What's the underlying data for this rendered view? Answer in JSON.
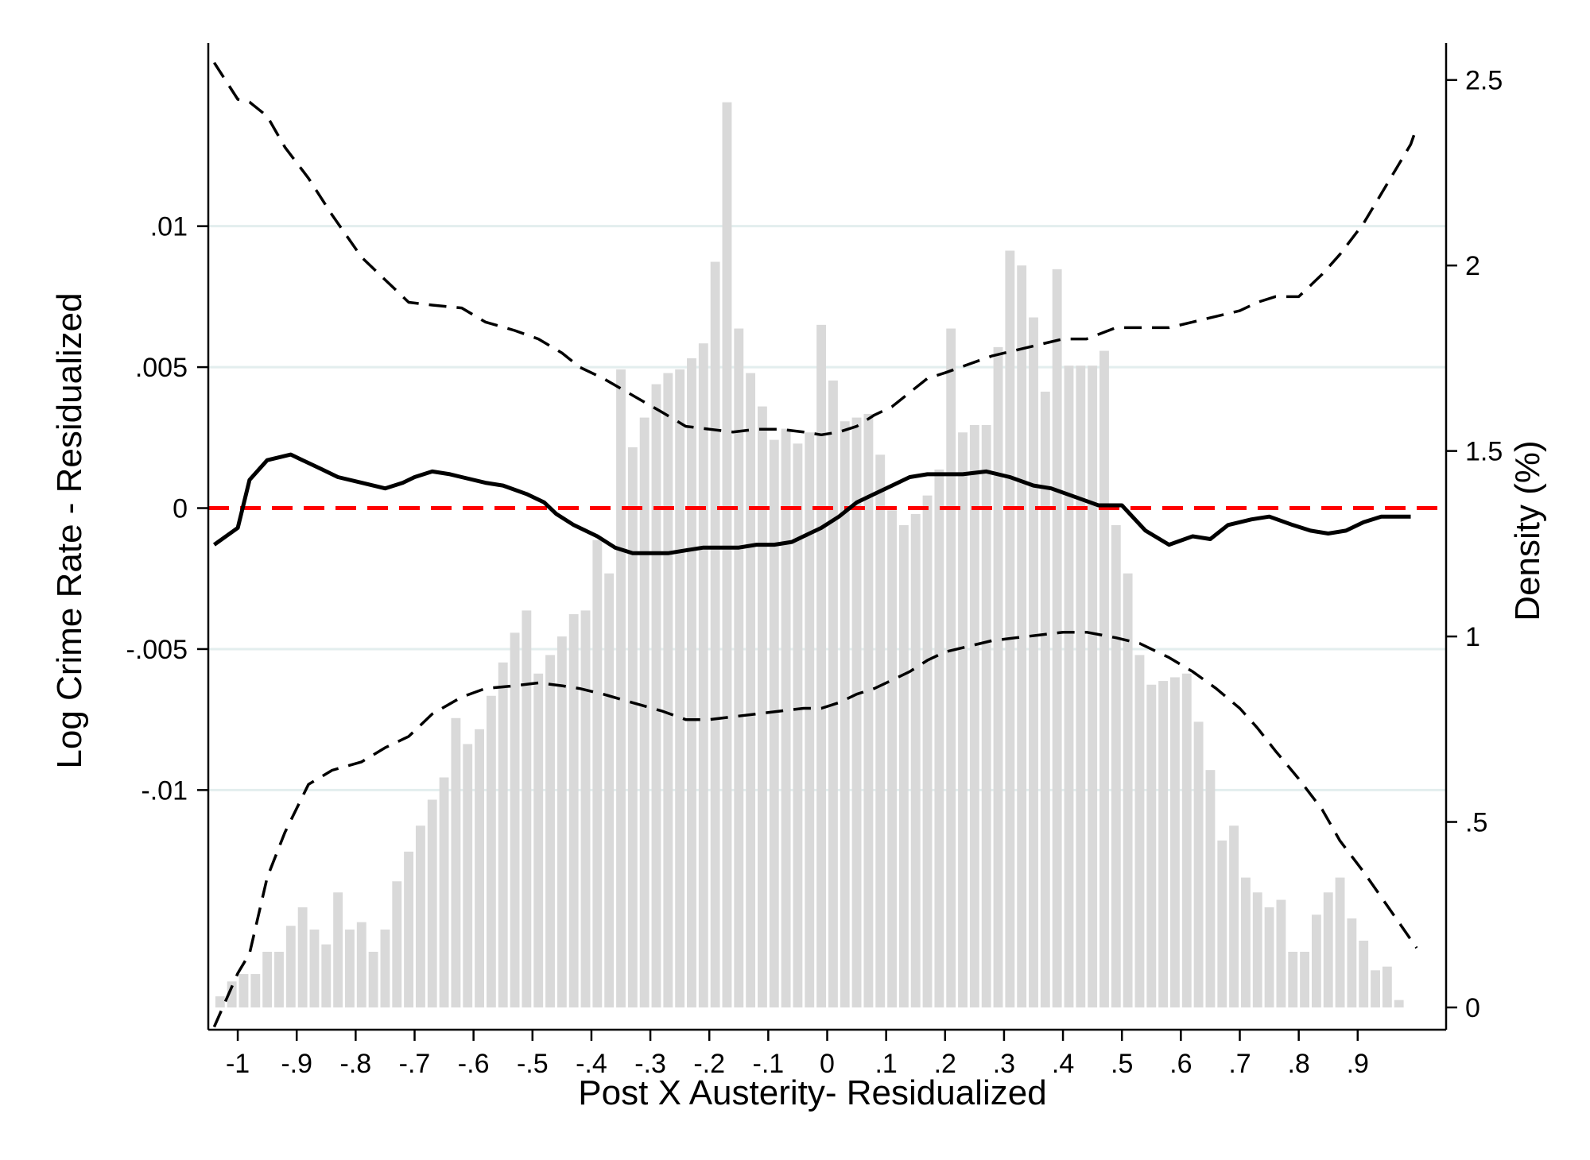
{
  "chart_data": {
    "type": "histogram_with_line",
    "title": "",
    "xlabel": "Post X Austerity- Residualized",
    "ylabel_left": "Log Crime Rate - Residualized",
    "ylabel_right": "Density (%)",
    "xlim": [
      -1.05,
      1.05
    ],
    "ylim_left": [
      -0.0185,
      0.0165
    ],
    "ylim_right": [
      -0.06,
      2.6
    ],
    "x_ticks": [
      {
        "value": -1.0,
        "label": "-1"
      },
      {
        "value": -0.9,
        "label": "-.9"
      },
      {
        "value": -0.8,
        "label": "-.8"
      },
      {
        "value": -0.7,
        "label": "-.7"
      },
      {
        "value": -0.6,
        "label": "-.6"
      },
      {
        "value": -0.5,
        "label": "-.5"
      },
      {
        "value": -0.4,
        "label": "-.4"
      },
      {
        "value": -0.3,
        "label": "-.3"
      },
      {
        "value": -0.2,
        "label": "-.2"
      },
      {
        "value": -0.1,
        "label": "-.1"
      },
      {
        "value": 0.0,
        "label": "0"
      },
      {
        "value": 0.1,
        "label": ".1"
      },
      {
        "value": 0.2,
        "label": ".2"
      },
      {
        "value": 0.3,
        "label": ".3"
      },
      {
        "value": 0.4,
        "label": ".4"
      },
      {
        "value": 0.5,
        "label": ".5"
      },
      {
        "value": 0.6,
        "label": ".6"
      },
      {
        "value": 0.7,
        "label": ".7"
      },
      {
        "value": 0.8,
        "label": ".8"
      },
      {
        "value": 0.9,
        "label": ".9"
      }
    ],
    "y_left_ticks": [
      {
        "value": 0.01,
        "label": ".01"
      },
      {
        "value": 0.005,
        "label": ".005"
      },
      {
        "value": 0.0,
        "label": "0"
      },
      {
        "value": -0.005,
        "label": "-.005"
      },
      {
        "value": -0.01,
        "label": "-.01"
      }
    ],
    "y_right_ticks": [
      {
        "value": 2.5,
        "label": "2.5"
      },
      {
        "value": 2.0,
        "label": "2"
      },
      {
        "value": 1.5,
        "label": "1.5"
      },
      {
        "value": 1.0,
        "label": "1"
      },
      {
        "value": 0.5,
        "label": ".5"
      },
      {
        "value": 0.0,
        "label": "0"
      }
    ],
    "gridlines": [
      0.01,
      0.005,
      -0.005,
      -0.01
    ],
    "reference_line": {
      "y": 0,
      "color": "#ff0000",
      "style": "dashed"
    },
    "colors": {
      "bars": "#d9d9d9",
      "line": "#000000",
      "ci": "#000000",
      "grid": "#e3eeee",
      "reference": "#ff0000"
    },
    "histogram": {
      "x_start": -1.04,
      "bin_width": 0.02,
      "density": [
        0.03,
        0.07,
        0.09,
        0.09,
        0.15,
        0.15,
        0.22,
        0.27,
        0.21,
        0.17,
        0.31,
        0.21,
        0.23,
        0.15,
        0.21,
        0.34,
        0.42,
        0.49,
        0.56,
        0.62,
        0.78,
        0.71,
        0.75,
        0.84,
        0.93,
        1.01,
        1.07,
        0.9,
        0.95,
        1.0,
        1.06,
        1.07,
        1.26,
        1.17,
        1.72,
        1.51,
        1.59,
        1.68,
        1.71,
        1.72,
        1.75,
        1.79,
        2.01,
        2.44,
        1.83,
        1.71,
        1.62,
        1.53,
        1.56,
        1.52,
        1.55,
        1.84,
        1.69,
        1.58,
        1.59,
        1.6,
        1.49,
        1.34,
        1.3,
        1.33,
        1.38,
        1.45,
        1.83,
        1.55,
        1.57,
        1.57,
        1.78,
        2.04,
        2.0,
        1.86,
        1.66,
        1.99,
        1.73,
        1.73,
        1.73,
        1.77,
        1.3,
        1.17,
        0.95,
        0.87,
        0.88,
        0.89,
        0.9,
        0.77,
        0.64,
        0.45,
        0.49,
        0.35,
        0.31,
        0.27,
        0.29,
        0.15,
        0.15,
        0.25,
        0.31,
        0.35,
        0.24,
        0.18,
        0.1,
        0.11,
        0.02
      ]
    },
    "series": [
      {
        "style": "solid",
        "x": [
          -1.04,
          -1.0,
          -0.98,
          -0.95,
          -0.91,
          -0.89,
          -0.86,
          -0.83,
          -0.79,
          -0.75,
          -0.72,
          -0.7,
          -0.67,
          -0.64,
          -0.62,
          -0.58,
          -0.55,
          -0.51,
          -0.48,
          -0.46,
          -0.43,
          -0.39,
          -0.36,
          -0.33,
          -0.3,
          -0.27,
          -0.24,
          -0.21,
          -0.18,
          -0.15,
          -0.12,
          -0.09,
          -0.06,
          -0.04,
          -0.01,
          0.02,
          0.05,
          0.08,
          0.11,
          0.14,
          0.17,
          0.2,
          0.23,
          0.27,
          0.31,
          0.35,
          0.38,
          0.42,
          0.46,
          0.5,
          0.54,
          0.58,
          0.62,
          0.65,
          0.68,
          0.72,
          0.75,
          0.79,
          0.82,
          0.85,
          0.88,
          0.91,
          0.94,
          0.96,
          0.99
        ],
        "y": [
          -0.0013,
          -0.0007,
          0.001,
          0.0017,
          0.0019,
          0.0017,
          0.0014,
          0.0011,
          0.0009,
          0.0007,
          0.0009,
          0.0011,
          0.0013,
          0.0012,
          0.0011,
          0.0009,
          0.0008,
          0.0005,
          0.0002,
          -0.0002,
          -0.0006,
          -0.001,
          -0.0014,
          -0.0016,
          -0.0016,
          -0.0016,
          -0.0015,
          -0.0014,
          -0.0014,
          -0.0014,
          -0.0013,
          -0.0013,
          -0.0012,
          -0.001,
          -0.0007,
          -0.0003,
          0.0002,
          0.0005,
          0.0008,
          0.0011,
          0.0012,
          0.0012,
          0.0012,
          0.0013,
          0.0011,
          0.0008,
          0.0007,
          0.0004,
          0.0001,
          0.0001,
          -0.0008,
          -0.0013,
          -0.001,
          -0.0011,
          -0.0006,
          -0.0004,
          -0.0003,
          -0.0006,
          -0.0008,
          -0.0009,
          -0.0008,
          -0.0005,
          -0.0003,
          -0.0003,
          -0.0003
        ]
      },
      {
        "style": "dashed",
        "x": [
          -1.04,
          -1.0,
          -0.98,
          -0.95,
          -0.92,
          -0.88,
          -0.84,
          -0.79,
          -0.75,
          -0.71,
          -0.67,
          -0.62,
          -0.58,
          -0.53,
          -0.49,
          -0.45,
          -0.42,
          -0.38,
          -0.33,
          -0.28,
          -0.24,
          -0.2,
          -0.16,
          -0.12,
          -0.08,
          -0.04,
          -0.01,
          0.02,
          0.05,
          0.08,
          0.11,
          0.14,
          0.17,
          0.2,
          0.24,
          0.28,
          0.32,
          0.36,
          0.4,
          0.44,
          0.49,
          0.53,
          0.58,
          0.62,
          0.66,
          0.7,
          0.73,
          0.76,
          0.8,
          0.84,
          0.87,
          0.91,
          0.95,
          0.99,
          1.0
        ],
        "y": [
          0.0158,
          0.0145,
          0.0144,
          0.0139,
          0.0128,
          0.0117,
          0.0104,
          0.0089,
          0.0081,
          0.0073,
          0.0072,
          0.0071,
          0.0066,
          0.0063,
          0.006,
          0.0055,
          0.005,
          0.0046,
          0.004,
          0.0034,
          0.0029,
          0.0028,
          0.0027,
          0.0028,
          0.0028,
          0.0027,
          0.0026,
          0.0027,
          0.0029,
          0.0033,
          0.0036,
          0.0041,
          0.0046,
          0.0048,
          0.0051,
          0.0054,
          0.0056,
          0.0058,
          0.006,
          0.006,
          0.0064,
          0.0064,
          0.0064,
          0.0066,
          0.0068,
          0.007,
          0.0073,
          0.0075,
          0.0075,
          0.0083,
          0.009,
          0.0101,
          0.0115,
          0.0129,
          0.0135
        ]
      },
      {
        "style": "dashed",
        "x": [
          -1.04,
          -1.0,
          -0.98,
          -0.95,
          -0.92,
          -0.88,
          -0.84,
          -0.79,
          -0.75,
          -0.71,
          -0.67,
          -0.62,
          -0.58,
          -0.53,
          -0.49,
          -0.45,
          -0.42,
          -0.38,
          -0.33,
          -0.28,
          -0.24,
          -0.2,
          -0.16,
          -0.12,
          -0.08,
          -0.04,
          -0.01,
          0.02,
          0.05,
          0.08,
          0.11,
          0.14,
          0.17,
          0.2,
          0.24,
          0.28,
          0.32,
          0.36,
          0.4,
          0.44,
          0.49,
          0.53,
          0.58,
          0.62,
          0.66,
          0.7,
          0.73,
          0.76,
          0.8,
          0.84,
          0.87,
          0.91,
          0.95,
          0.99,
          1.0
        ],
        "y": [
          -0.0184,
          -0.0165,
          -0.0158,
          -0.0131,
          -0.0115,
          -0.0098,
          -0.0093,
          -0.009,
          -0.0085,
          -0.0081,
          -0.0073,
          -0.0067,
          -0.0064,
          -0.0063,
          -0.0062,
          -0.0063,
          -0.0064,
          -0.0066,
          -0.0069,
          -0.0072,
          -0.0075,
          -0.0075,
          -0.0074,
          -0.0073,
          -0.0072,
          -0.0071,
          -0.0071,
          -0.0069,
          -0.0066,
          -0.0064,
          -0.0061,
          -0.0058,
          -0.0054,
          -0.0051,
          -0.0049,
          -0.0047,
          -0.0046,
          -0.0045,
          -0.0044,
          -0.0044,
          -0.0046,
          -0.0048,
          -0.0053,
          -0.0058,
          -0.0064,
          -0.0071,
          -0.0078,
          -0.0086,
          -0.0096,
          -0.0107,
          -0.0118,
          -0.0129,
          -0.0141,
          -0.0153,
          -0.0156
        ]
      }
    ]
  }
}
